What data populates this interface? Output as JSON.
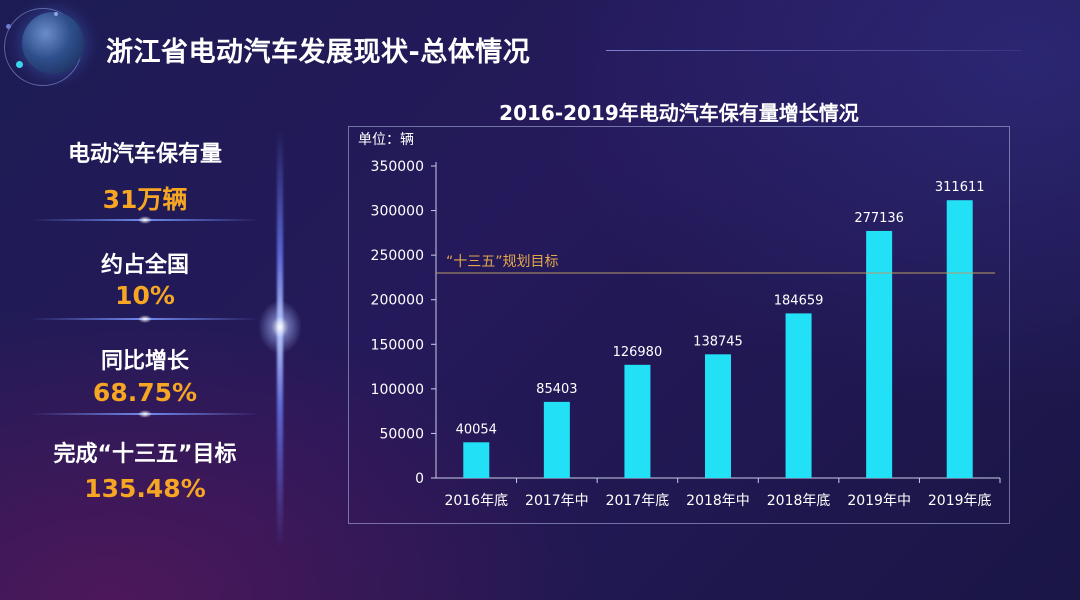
{
  "page_title": "浙江省电动汽车发展现状-总体情况",
  "stats": [
    {
      "label": "电动汽车保有量",
      "value": "31万辆"
    },
    {
      "label": "约占全国",
      "value": "10%"
    },
    {
      "label": "同比增长",
      "value": "68.75%"
    },
    {
      "label": "完成“十三五”目标",
      "value": "135.48%"
    }
  ],
  "colors": {
    "accent": "#f6a623",
    "bar": "#22e0f5",
    "target_line": "#b69a68",
    "target_text": "#e3a84a"
  },
  "chart_data": {
    "type": "bar",
    "title": "2016-2019年电动汽车保有量增长情况",
    "unit_label": "单位：辆",
    "categories": [
      "2016年底",
      "2017年中",
      "2017年底",
      "2018年中",
      "2018年底",
      "2019年中",
      "2019年底"
    ],
    "values": [
      40054,
      85403,
      126980,
      138745,
      184659,
      277136,
      311611
    ],
    "data_labels": [
      "40054",
      "85403",
      "126980",
      "138745",
      "184659",
      "277136",
      "311611"
    ],
    "ylim": [
      0,
      350000
    ],
    "yticks": [
      0,
      50000,
      100000,
      150000,
      200000,
      250000,
      300000,
      350000
    ],
    "ytick_labels": [
      "0",
      "50000",
      "100000",
      "150000",
      "200000",
      "250000",
      "300000",
      "350000"
    ],
    "reference_line": {
      "value": 230000,
      "label": "“十三五”规划目标"
    },
    "grid": false,
    "legend": "none"
  }
}
